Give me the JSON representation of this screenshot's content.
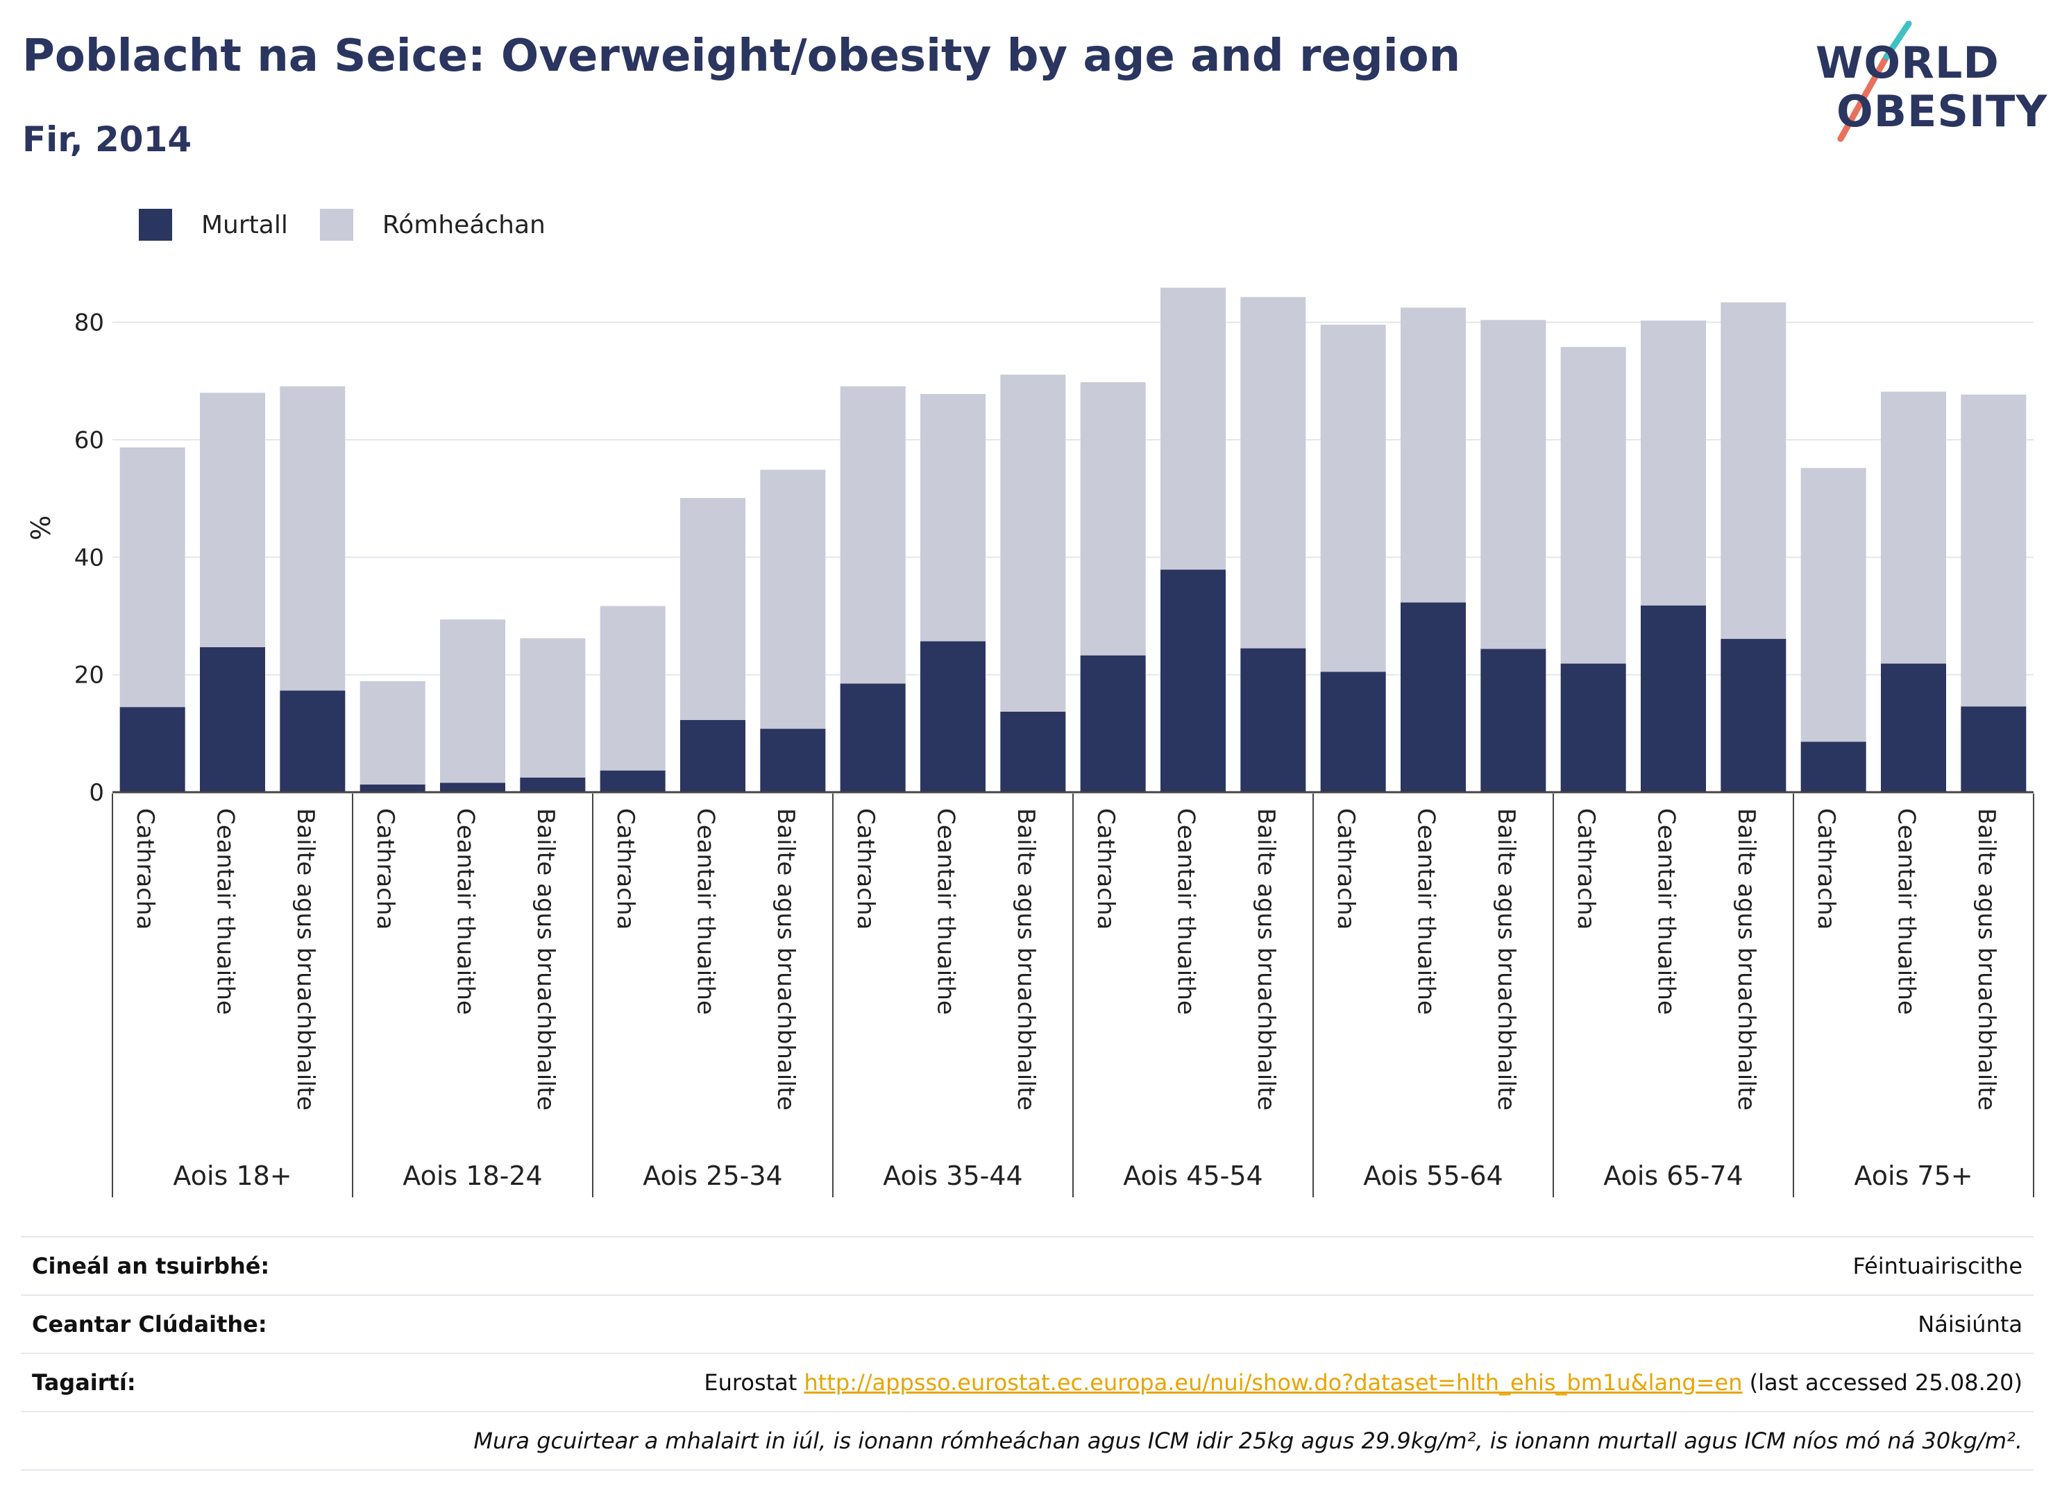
{
  "header": {
    "title": "Poblacht na Seice: Overweight/obesity by age and region",
    "subtitle": "Fir, 2014"
  },
  "logo": {
    "line1": "WORLD",
    "line2": "OBESITY"
  },
  "colors": {
    "murtall": "#2a3560",
    "romheachan": "#c9cbd8",
    "text": "#2a3560",
    "link": "#e8a400"
  },
  "chart_data": {
    "type": "bar",
    "stacked": true,
    "ylabel": "%",
    "ylim": [
      0,
      90
    ],
    "yticks": [
      0,
      20,
      40,
      60,
      80
    ],
    "grid": true,
    "legend_position": "top-left",
    "region_labels": [
      "Cathracha",
      "Ceantair thuaithe",
      "Bailte agus bruachbhailte"
    ],
    "groups": [
      "Aois 18+",
      "Aois 18-24",
      "Aois 25-34",
      "Aois 35-44",
      "Aois 45-54",
      "Aois 55-64",
      "Aois 65-74",
      "Aois 75+"
    ],
    "series": [
      {
        "name": "Murtall",
        "values": [
          [
            14.5,
            24.7,
            17.3
          ],
          [
            1.3,
            1.6,
            2.5
          ],
          [
            3.7,
            12.3,
            10.8
          ],
          [
            18.5,
            25.7,
            13.7
          ],
          [
            23.3,
            37.9,
            24.5
          ],
          [
            20.5,
            32.3,
            24.4
          ],
          [
            21.9,
            31.8,
            26.1
          ],
          [
            8.6,
            21.9,
            14.6
          ]
        ]
      },
      {
        "name": "Rómheáchan",
        "values": [
          [
            44.2,
            43.3,
            51.8
          ],
          [
            17.6,
            27.8,
            23.7
          ],
          [
            28.0,
            37.8,
            44.1
          ],
          [
            50.6,
            42.1,
            57.4
          ],
          [
            46.5,
            48.0,
            59.8
          ],
          [
            59.1,
            50.2,
            56.0
          ],
          [
            53.9,
            48.5,
            57.3
          ],
          [
            46.6,
            46.3,
            53.1
          ]
        ]
      }
    ]
  },
  "footer": {
    "rows": [
      {
        "label": "Cineál an tsuirbhé:",
        "value": "Féintuairiscithe"
      },
      {
        "label": "Ceantar Clúdaithe:",
        "value": "Náisiúnta"
      }
    ],
    "references": {
      "label": "Tagairtí:",
      "source": "Eurostat",
      "link": "http://appsso.eurostat.ec.europa.eu/nui/show.do?dataset=hlth_ehis_bm1u&lang=en",
      "accessed": "(last accessed 25.08.20)"
    },
    "note": "Mura gcuirtear a mhalairt in iúl, is ionann rómheáchan agus ICM idir 25kg agus 29.9kg/m², is ionann murtall agus ICM níos mó ná 30kg/m²."
  }
}
